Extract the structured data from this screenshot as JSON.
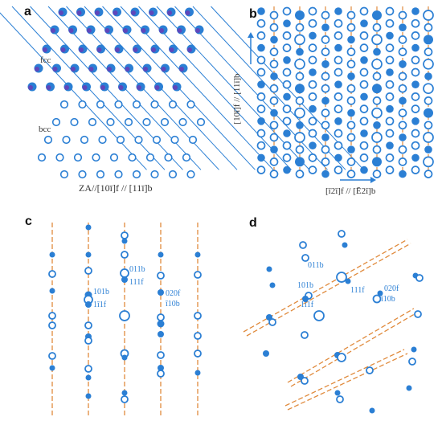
{
  "colors": {
    "filled": "#2b7fd4",
    "ring": "#2b7fd4",
    "bg": "#ffffff",
    "dashed": "#e08a3c",
    "fill_ring_bg": "#dde9f8",
    "fcc_line": "#8a1aa6",
    "bcc_line": "#2b7fd4"
  },
  "panel_a": {
    "label": "a",
    "fcc": "fcc",
    "bcc": "bcc",
    "za": "ZA//[10ī]f // [11ī]b"
  },
  "panel_b": {
    "label": "b",
    "vertical_axis": "[10ī]f // [11ī]b",
    "horizontal_axis": "[ī2ī]f // [Ē2ī]b"
  },
  "panel_c": {
    "label": "c",
    "idx_011": "011b",
    "idx_111": "111f",
    "idx_101": "101b",
    "idx_1bar11": "1ī1f",
    "idx_020": "020f",
    "idx_bar110": "ī10b"
  },
  "panel_d": {
    "label": "d",
    "idx_011": "011b",
    "idx_101": "101b",
    "idx_111": "111f",
    "idx_1bar11": "1ī1f",
    "idx_020": "020f",
    "idx_bar110": "ī10b"
  }
}
